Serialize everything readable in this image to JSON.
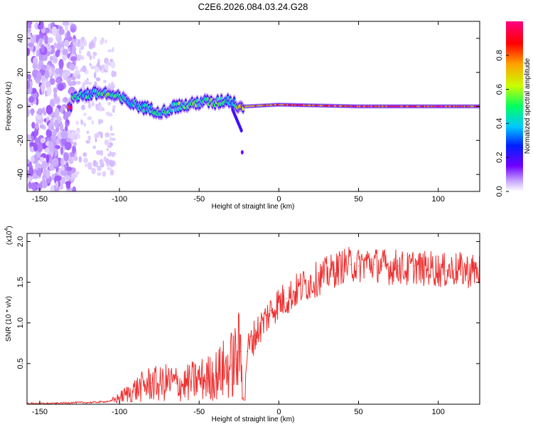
{
  "page_title": "C2E6.2026.084.03.24.G28",
  "chart_data": [
    {
      "type": "heatmap",
      "title": "C2E6.2026.084.03.24.G28",
      "xlabel": "Height of straight line (km)",
      "ylabel": "Frequency (Hz)",
      "xlim": [
        -158,
        126
      ],
      "ylim": [
        -50,
        50
      ],
      "xticks": [
        -150,
        -100,
        -50,
        0,
        50,
        100
      ],
      "xtick_labels": [
        "-150",
        "-100",
        "-50",
        "0",
        "50",
        "100"
      ],
      "yticks": [
        -40,
        -20,
        0,
        20,
        40
      ],
      "ytick_labels": [
        "-40",
        "-20",
        "0",
        "20",
        "40"
      ],
      "colorbar": {
        "label": "Normalized spectral amplitude",
        "range": [
          0,
          1
        ],
        "ticks": [
          0.0,
          0.2,
          0.4,
          0.6,
          0.8
        ],
        "tick_labels": [
          "0.0",
          "0.2",
          "0.4",
          "0.6",
          "0.8"
        ],
        "colors": [
          "#ffffff",
          "#c8a8ff",
          "#7000ff",
          "#0020ff",
          "#00c8ff",
          "#00ff60",
          "#c8ff00",
          "#ffa000",
          "#ff0000",
          "#ff0080"
        ]
      },
      "signal_trace": {
        "x": [
          -130,
          -120,
          -110,
          -100,
          -90,
          -80,
          -72,
          -65,
          -55,
          -48,
          -40,
          -32,
          -28,
          -25,
          -20,
          0,
          50,
          100,
          126
        ],
        "frequency": [
          6,
          7,
          8,
          5,
          1,
          -2,
          -3,
          0,
          1,
          3,
          2,
          4,
          2,
          0,
          0,
          1,
          0,
          0,
          0
        ],
        "amplitude": [
          0.55,
          0.5,
          0.6,
          0.55,
          0.5,
          0.5,
          0.55,
          0.6,
          0.6,
          0.55,
          0.6,
          0.5,
          0.45,
          0.8,
          0.85,
          0.9,
          0.95,
          0.95,
          0.95
        ]
      },
      "noise_region": {
        "x_range": [
          -158,
          -128
        ],
        "frequency_range": [
          -50,
          50
        ]
      }
    },
    {
      "type": "line",
      "xlabel": "Height of straight line (km)",
      "ylabel": "SNR (10 * v/v)",
      "y_multiplier_label": "(x10",
      "y_multiplier_exponent": "4",
      "y_multiplier_close": ")",
      "xlim": [
        -158,
        126
      ],
      "ylim": [
        0,
        2.1
      ],
      "xticks": [
        -150,
        -100,
        -50,
        0,
        50,
        100
      ],
      "xtick_labels": [
        "-150",
        "-100",
        "-50",
        "0",
        "50",
        "100"
      ],
      "yticks": [
        0.5,
        1.0,
        1.5,
        2.0
      ],
      "ytick_labels": [
        "0.5",
        "1.0",
        "1.5",
        "2.0"
      ],
      "series": [
        {
          "name": "SNR",
          "color": "#ee3030",
          "x": [
            -158,
            -150,
            -140,
            -130,
            -120,
            -110,
            -105,
            -100,
            -95,
            -90,
            -85,
            -80,
            -75,
            -70,
            -65,
            -60,
            -55,
            -50,
            -45,
            -40,
            -35,
            -30,
            -27,
            -24,
            -22,
            -20,
            -15,
            -10,
            -5,
            0,
            5,
            10,
            15,
            20,
            25,
            30,
            35,
            40,
            45,
            50,
            55,
            60,
            65,
            70,
            75,
            80,
            85,
            90,
            95,
            100,
            105,
            110,
            115,
            120,
            126
          ],
          "y": [
            0.01,
            0.01,
            0.01,
            0.02,
            0.02,
            0.03,
            0.04,
            0.08,
            0.13,
            0.18,
            0.22,
            0.26,
            0.24,
            0.27,
            0.26,
            0.24,
            0.28,
            0.3,
            0.32,
            0.35,
            0.42,
            0.48,
            0.55,
            0.65,
            0.08,
            0.65,
            0.85,
            1.0,
            1.15,
            1.25,
            1.3,
            1.38,
            1.45,
            1.5,
            1.55,
            1.6,
            1.65,
            1.7,
            1.72,
            1.7,
            1.75,
            1.72,
            1.7,
            1.68,
            1.7,
            1.65,
            1.7,
            1.66,
            1.68,
            1.65,
            1.64,
            1.66,
            1.65,
            1.64,
            1.65
          ]
        }
      ]
    }
  ]
}
